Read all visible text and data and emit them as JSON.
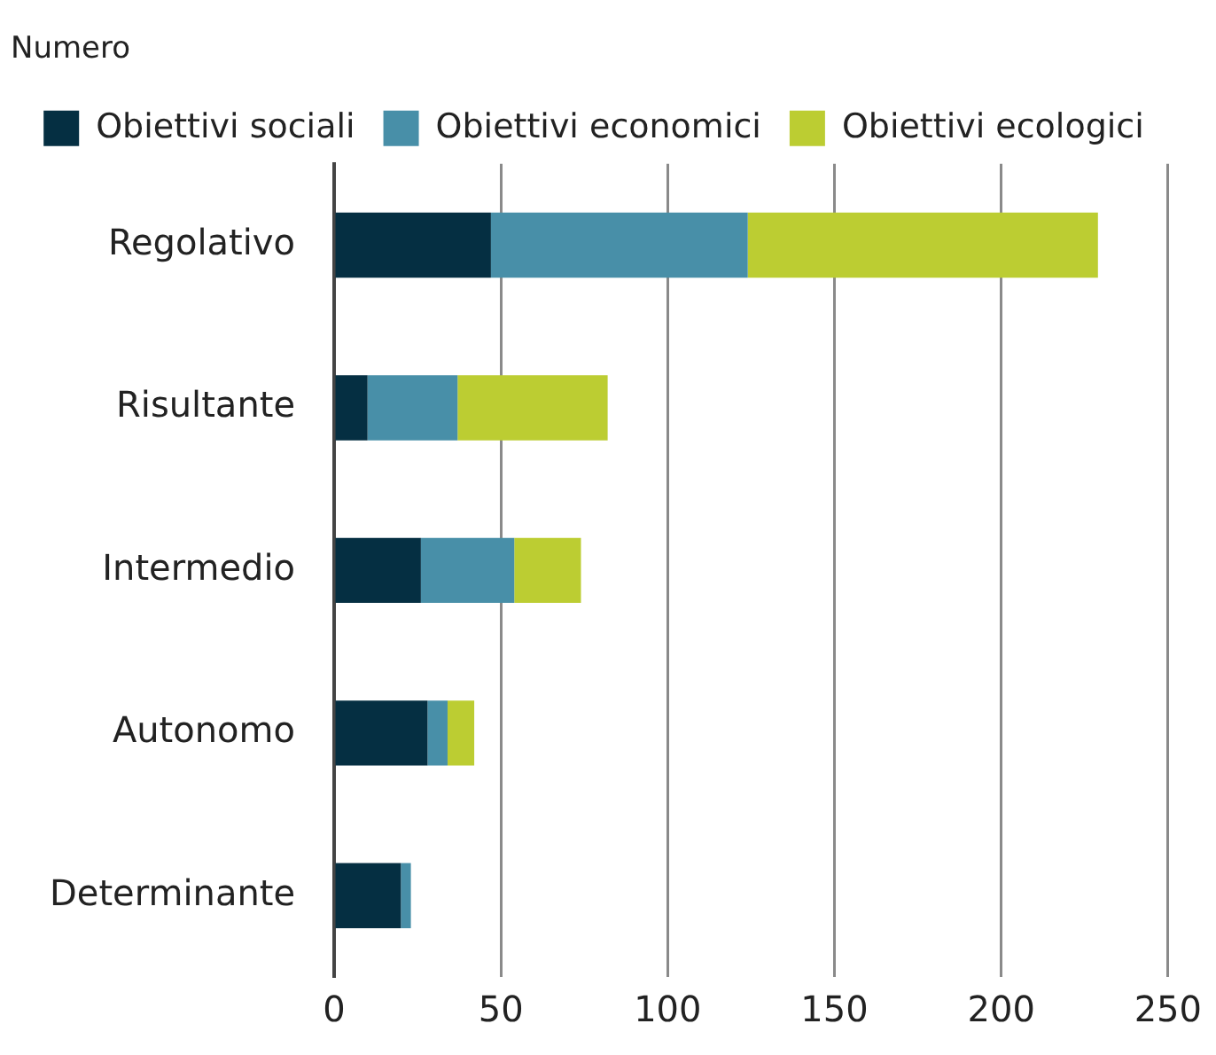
{
  "chart_data": {
    "type": "bar",
    "orientation": "horizontal",
    "stacked": true,
    "title": "Numero",
    "categories": [
      "Regolativo",
      "Risultante",
      "Intermedio",
      "Autonomo",
      "Determinante"
    ],
    "series": [
      {
        "name": "Obiettivi sociali",
        "color": "#052f42",
        "values": [
          47,
          10,
          26,
          28,
          20
        ]
      },
      {
        "name": "Obiettivi economici",
        "color": "#488fa8",
        "values": [
          77,
          27,
          28,
          6,
          3
        ]
      },
      {
        "name": "Obiettivi ecologici",
        "color": "#bccd32",
        "values": [
          105,
          45,
          20,
          8,
          0
        ]
      }
    ],
    "xlim": [
      0,
      250
    ],
    "xticks": [
      0,
      50,
      100,
      150,
      200,
      250
    ],
    "grid": "x",
    "legend": "top"
  }
}
